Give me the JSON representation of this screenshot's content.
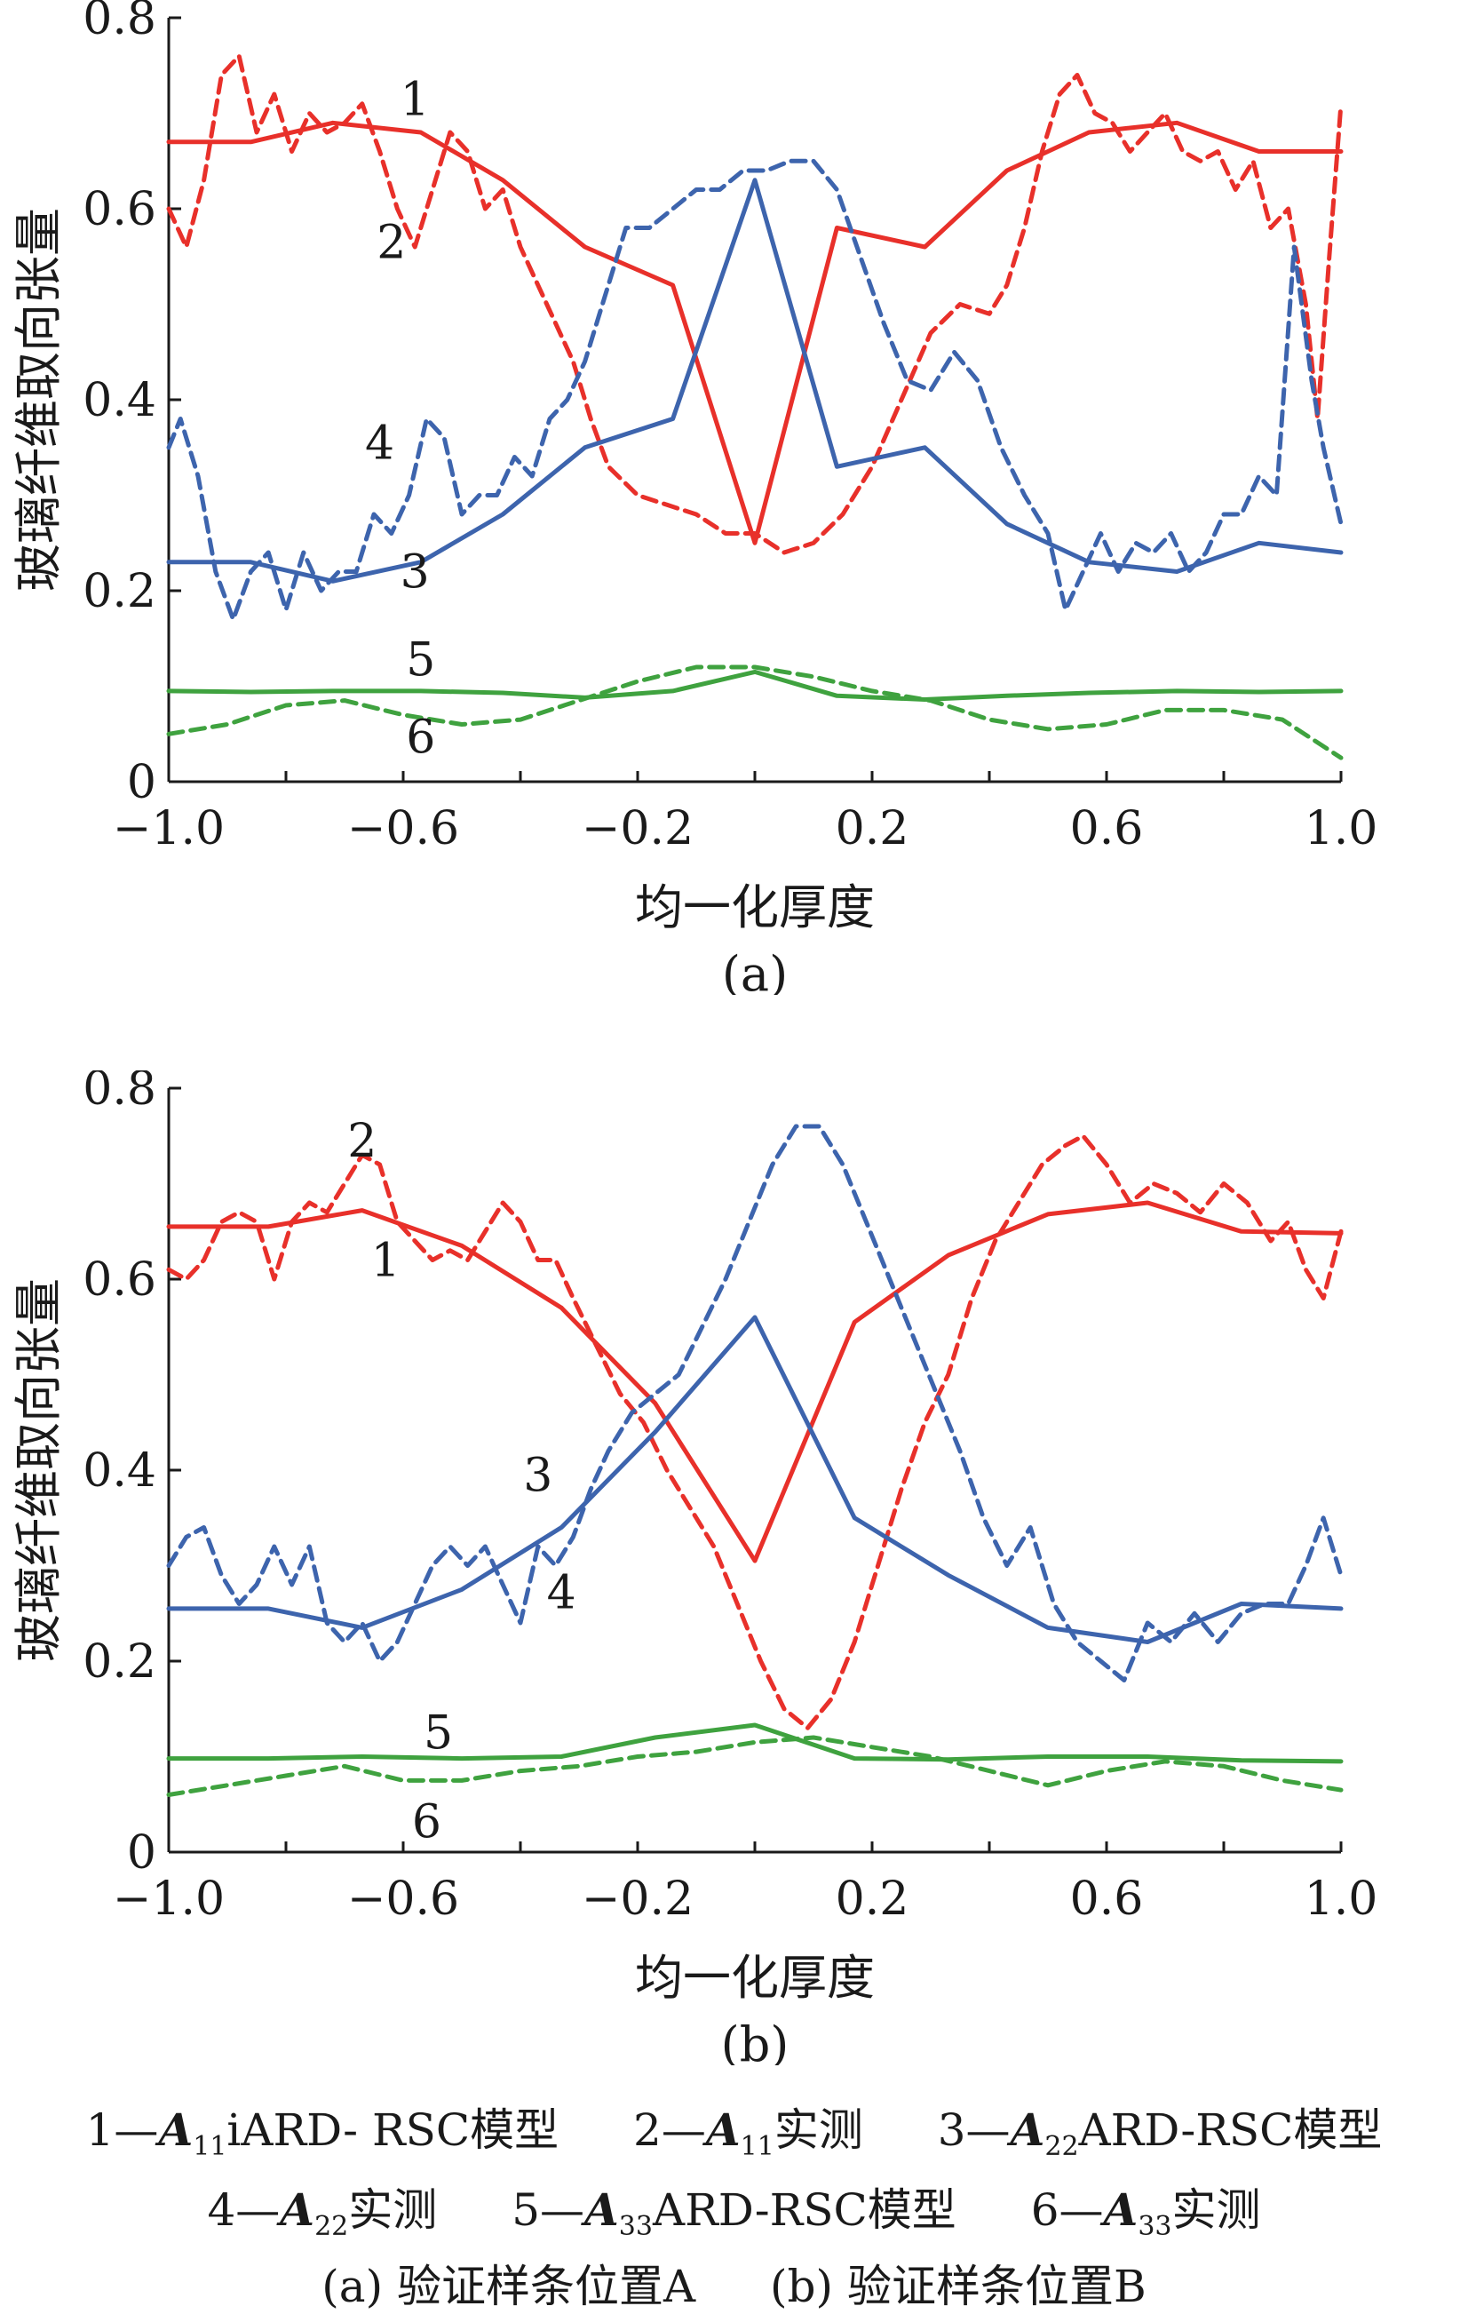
{
  "panels": [
    {
      "id": "a",
      "caption": "(a)"
    },
    {
      "id": "b",
      "caption": "(b)"
    }
  ],
  "colors": {
    "series1": "#e8302a",
    "series2": "#e8302a",
    "series3": "#3d64ad",
    "series4": "#3d64ad",
    "series5": "#3fa23f",
    "series6": "#3fa23f",
    "axis": "#1a1a1a"
  },
  "legend": {
    "row1": [
      {
        "num": "1—",
        "sym": "A",
        "sub": "11",
        "rest": "iARD- RSC模型"
      },
      {
        "num": "2—",
        "sym": "A",
        "sub": "11",
        "rest": "实测"
      },
      {
        "num": "3—",
        "sym": "A",
        "sub": "22",
        "rest": "ARD-RSC模型"
      }
    ],
    "row2": [
      {
        "num": "4—",
        "sym": "A",
        "sub": "22",
        "rest": "实测"
      },
      {
        "num": "5—",
        "sym": "A",
        "sub": "33",
        "rest": "ARD-RSC模型"
      },
      {
        "num": "6—",
        "sym": "A",
        "sub": "33",
        "rest": "实测"
      }
    ],
    "row3": [
      "(a) 验证样条位置A",
      "(b) 验证样条位置B"
    ]
  },
  "chart_data": [
    {
      "type": "line",
      "panel": "(a)",
      "xlabel": "均一化厚度",
      "ylabel": "玻璃纤维取向张量",
      "xlim": [
        -1.0,
        1.0
      ],
      "ylim": [
        0,
        0.8
      ],
      "xticks": [
        "-1.0",
        "-0.6",
        "-0.2",
        "0.2",
        "0.6",
        "1.0"
      ],
      "yticks": [
        "0",
        "0.2",
        "0.4",
        "0.6",
        "0.8"
      ],
      "series": [
        {
          "name": "1",
          "style": "solid",
          "color": "#e8302a",
          "x": [
            -1.0,
            -0.86,
            -0.72,
            -0.57,
            -0.43,
            -0.29,
            -0.14,
            0.0,
            0.14,
            0.29,
            0.43,
            0.57,
            0.72,
            0.86,
            1.0
          ],
          "y": [
            0.67,
            0.67,
            0.69,
            0.68,
            0.63,
            0.56,
            0.52,
            0.25,
            0.58,
            0.56,
            0.64,
            0.68,
            0.69,
            0.66,
            0.66
          ],
          "label_at": [
            -0.58,
            0.715
          ]
        },
        {
          "name": "2",
          "style": "dashed",
          "color": "#e8302a",
          "x": [
            -1.0,
            -0.97,
            -0.94,
            -0.91,
            -0.88,
            -0.85,
            -0.82,
            -0.79,
            -0.76,
            -0.73,
            -0.7,
            -0.67,
            -0.64,
            -0.61,
            -0.58,
            -0.55,
            -0.52,
            -0.49,
            -0.46,
            -0.43,
            -0.4,
            -0.37,
            -0.34,
            -0.31,
            -0.28,
            -0.25,
            -0.2,
            -0.15,
            -0.1,
            -0.05,
            0.0,
            0.05,
            0.1,
            0.15,
            0.2,
            0.25,
            0.3,
            0.35,
            0.4,
            0.43,
            0.46,
            0.49,
            0.52,
            0.55,
            0.58,
            0.61,
            0.64,
            0.67,
            0.7,
            0.73,
            0.76,
            0.79,
            0.82,
            0.85,
            0.88,
            0.91,
            0.94,
            0.96,
            0.98,
            1.0
          ],
          "y": [
            0.6,
            0.56,
            0.63,
            0.74,
            0.76,
            0.68,
            0.72,
            0.66,
            0.7,
            0.68,
            0.69,
            0.71,
            0.66,
            0.6,
            0.56,
            0.62,
            0.68,
            0.66,
            0.6,
            0.62,
            0.56,
            0.52,
            0.48,
            0.44,
            0.38,
            0.33,
            0.3,
            0.29,
            0.28,
            0.26,
            0.26,
            0.24,
            0.25,
            0.28,
            0.33,
            0.4,
            0.47,
            0.5,
            0.49,
            0.52,
            0.58,
            0.66,
            0.72,
            0.74,
            0.7,
            0.69,
            0.66,
            0.68,
            0.7,
            0.66,
            0.65,
            0.66,
            0.62,
            0.65,
            0.58,
            0.6,
            0.5,
            0.38,
            0.55,
            0.71
          ],
          "label_at": [
            -0.62,
            0.565
          ]
        },
        {
          "name": "3",
          "style": "solid",
          "color": "#3d64ad",
          "x": [
            -1.0,
            -0.86,
            -0.72,
            -0.57,
            -0.43,
            -0.29,
            -0.14,
            0.0,
            0.14,
            0.29,
            0.43,
            0.57,
            0.72,
            0.86,
            1.0
          ],
          "y": [
            0.23,
            0.23,
            0.21,
            0.23,
            0.28,
            0.35,
            0.38,
            0.63,
            0.33,
            0.35,
            0.27,
            0.23,
            0.22,
            0.25,
            0.24
          ],
          "label_at": [
            -0.58,
            0.22
          ]
        },
        {
          "name": "4",
          "style": "dashed",
          "color": "#3d64ad",
          "x": [
            -1.0,
            -0.98,
            -0.95,
            -0.92,
            -0.89,
            -0.86,
            -0.83,
            -0.8,
            -0.77,
            -0.74,
            -0.71,
            -0.68,
            -0.65,
            -0.62,
            -0.59,
            -0.56,
            -0.53,
            -0.5,
            -0.47,
            -0.44,
            -0.41,
            -0.38,
            -0.35,
            -0.32,
            -0.29,
            -0.26,
            -0.22,
            -0.18,
            -0.14,
            -0.1,
            -0.06,
            -0.02,
            0.02,
            0.06,
            0.1,
            0.14,
            0.18,
            0.22,
            0.26,
            0.3,
            0.34,
            0.38,
            0.42,
            0.46,
            0.5,
            0.53,
            0.56,
            0.59,
            0.62,
            0.65,
            0.68,
            0.71,
            0.74,
            0.77,
            0.8,
            0.83,
            0.86,
            0.89,
            0.92,
            0.95,
            0.97,
            1.0
          ],
          "y": [
            0.35,
            0.38,
            0.32,
            0.22,
            0.17,
            0.22,
            0.24,
            0.18,
            0.24,
            0.2,
            0.22,
            0.22,
            0.28,
            0.26,
            0.3,
            0.38,
            0.36,
            0.28,
            0.3,
            0.3,
            0.34,
            0.32,
            0.38,
            0.4,
            0.44,
            0.5,
            0.58,
            0.58,
            0.6,
            0.62,
            0.62,
            0.64,
            0.64,
            0.65,
            0.65,
            0.62,
            0.55,
            0.48,
            0.42,
            0.41,
            0.45,
            0.42,
            0.35,
            0.3,
            0.26,
            0.18,
            0.22,
            0.26,
            0.22,
            0.25,
            0.24,
            0.26,
            0.22,
            0.24,
            0.28,
            0.28,
            0.32,
            0.3,
            0.56,
            0.42,
            0.35,
            0.27
          ],
          "label_at": [
            -0.64,
            0.355
          ]
        },
        {
          "name": "5",
          "style": "solid",
          "color": "#3fa23f",
          "x": [
            -1.0,
            -0.86,
            -0.72,
            -0.57,
            -0.43,
            -0.29,
            -0.14,
            0.0,
            0.14,
            0.29,
            0.43,
            0.57,
            0.72,
            0.86,
            1.0
          ],
          "y": [
            0.095,
            0.094,
            0.095,
            0.095,
            0.093,
            0.088,
            0.095,
            0.115,
            0.09,
            0.086,
            0.09,
            0.093,
            0.095,
            0.094,
            0.095
          ],
          "label_at": [
            -0.57,
            0.128
          ]
        },
        {
          "name": "6",
          "style": "dashed",
          "color": "#3fa23f",
          "x": [
            -1.0,
            -0.9,
            -0.8,
            -0.7,
            -0.6,
            -0.5,
            -0.4,
            -0.3,
            -0.2,
            -0.1,
            0.0,
            0.1,
            0.2,
            0.3,
            0.4,
            0.5,
            0.6,
            0.7,
            0.8,
            0.9,
            1.0
          ],
          "y": [
            0.05,
            0.06,
            0.08,
            0.085,
            0.07,
            0.06,
            0.065,
            0.085,
            0.105,
            0.12,
            0.12,
            0.11,
            0.095,
            0.085,
            0.065,
            0.055,
            0.06,
            0.075,
            0.075,
            0.065,
            0.025
          ],
          "label_at": [
            -0.57,
            0.047
          ]
        }
      ]
    },
    {
      "type": "line",
      "panel": "(b)",
      "xlabel": "均一化厚度",
      "ylabel": "玻璃纤维取向张量",
      "xlim": [
        -1.0,
        1.0
      ],
      "ylim": [
        0,
        0.8
      ],
      "xticks": [
        "-1.0",
        "-0.6",
        "-0.2",
        "0.2",
        "0.6",
        "1.0"
      ],
      "yticks": [
        "0",
        "0.2",
        "0.4",
        "0.6",
        "0.8"
      ],
      "series": [
        {
          "name": "1",
          "style": "solid",
          "color": "#e8302a",
          "x": [
            -1.0,
            -0.83,
            -0.67,
            -0.5,
            -0.33,
            -0.17,
            0.0,
            0.17,
            0.33,
            0.5,
            0.67,
            0.83,
            1.0
          ],
          "y": [
            0.655,
            0.655,
            0.672,
            0.635,
            0.57,
            0.47,
            0.305,
            0.555,
            0.625,
            0.668,
            0.68,
            0.65,
            0.648
          ],
          "label_at": [
            -0.63,
            0.62
          ]
        },
        {
          "name": "2",
          "style": "dashed",
          "color": "#e8302a",
          "x": [
            -1.0,
            -0.97,
            -0.94,
            -0.91,
            -0.88,
            -0.85,
            -0.82,
            -0.79,
            -0.76,
            -0.73,
            -0.7,
            -0.67,
            -0.64,
            -0.61,
            -0.58,
            -0.55,
            -0.52,
            -0.49,
            -0.46,
            -0.43,
            -0.4,
            -0.37,
            -0.34,
            -0.31,
            -0.27,
            -0.23,
            -0.19,
            -0.15,
            -0.11,
            -0.07,
            -0.03,
            0.01,
            0.05,
            0.09,
            0.13,
            0.17,
            0.21,
            0.25,
            0.29,
            0.33,
            0.37,
            0.41,
            0.45,
            0.49,
            0.53,
            0.56,
            0.6,
            0.64,
            0.68,
            0.72,
            0.76,
            0.8,
            0.84,
            0.88,
            0.91,
            0.94,
            0.97,
            1.0
          ],
          "y": [
            0.61,
            0.6,
            0.62,
            0.66,
            0.67,
            0.66,
            0.6,
            0.66,
            0.68,
            0.67,
            0.7,
            0.73,
            0.72,
            0.66,
            0.64,
            0.62,
            0.63,
            0.62,
            0.65,
            0.68,
            0.66,
            0.62,
            0.62,
            0.58,
            0.53,
            0.48,
            0.45,
            0.4,
            0.36,
            0.32,
            0.26,
            0.2,
            0.15,
            0.13,
            0.16,
            0.22,
            0.3,
            0.38,
            0.45,
            0.5,
            0.58,
            0.64,
            0.68,
            0.72,
            0.74,
            0.75,
            0.72,
            0.68,
            0.7,
            0.69,
            0.67,
            0.7,
            0.68,
            0.64,
            0.66,
            0.61,
            0.58,
            0.65
          ],
          "label_at": [
            -0.67,
            0.745
          ]
        },
        {
          "name": "3",
          "style": "solid",
          "color": "#3d64ad",
          "x": [
            -1.0,
            -0.83,
            -0.67,
            -0.5,
            -0.33,
            -0.17,
            0.0,
            0.17,
            0.33,
            0.5,
            0.67,
            0.83,
            1.0
          ],
          "y": [
            0.255,
            0.255,
            0.235,
            0.275,
            0.34,
            0.44,
            0.56,
            0.35,
            0.29,
            0.235,
            0.22,
            0.26,
            0.255
          ],
          "label_at": [
            -0.37,
            0.395
          ]
        },
        {
          "name": "4",
          "style": "dashed",
          "color": "#3d64ad",
          "x": [
            -1.0,
            -0.97,
            -0.94,
            -0.91,
            -0.88,
            -0.85,
            -0.82,
            -0.79,
            -0.76,
            -0.73,
            -0.7,
            -0.67,
            -0.64,
            -0.61,
            -0.58,
            -0.55,
            -0.52,
            -0.49,
            -0.46,
            -0.43,
            -0.4,
            -0.37,
            -0.34,
            -0.31,
            -0.28,
            -0.25,
            -0.21,
            -0.17,
            -0.13,
            -0.09,
            -0.05,
            -0.01,
            0.03,
            0.07,
            0.11,
            0.15,
            0.19,
            0.23,
            0.27,
            0.31,
            0.35,
            0.39,
            0.43,
            0.47,
            0.51,
            0.55,
            0.59,
            0.63,
            0.67,
            0.71,
            0.75,
            0.79,
            0.83,
            0.87,
            0.91,
            0.94,
            0.97,
            1.0
          ],
          "y": [
            0.3,
            0.33,
            0.34,
            0.29,
            0.26,
            0.28,
            0.32,
            0.28,
            0.32,
            0.24,
            0.22,
            0.24,
            0.2,
            0.22,
            0.26,
            0.3,
            0.32,
            0.3,
            0.32,
            0.28,
            0.24,
            0.32,
            0.3,
            0.33,
            0.38,
            0.42,
            0.46,
            0.48,
            0.5,
            0.55,
            0.6,
            0.66,
            0.72,
            0.76,
            0.76,
            0.72,
            0.66,
            0.6,
            0.54,
            0.48,
            0.42,
            0.35,
            0.3,
            0.34,
            0.26,
            0.22,
            0.2,
            0.18,
            0.24,
            0.22,
            0.25,
            0.22,
            0.25,
            0.26,
            0.26,
            0.3,
            0.35,
            0.29
          ],
          "label_at": [
            -0.33,
            0.272
          ]
        },
        {
          "name": "5",
          "style": "solid",
          "color": "#3fa23f",
          "x": [
            -1.0,
            -0.83,
            -0.67,
            -0.5,
            -0.33,
            -0.17,
            0.0,
            0.17,
            0.33,
            0.5,
            0.67,
            0.83,
            1.0
          ],
          "y": [
            0.098,
            0.098,
            0.1,
            0.098,
            0.1,
            0.12,
            0.133,
            0.098,
            0.097,
            0.1,
            0.1,
            0.096,
            0.095
          ],
          "label_at": [
            -0.54,
            0.125
          ]
        },
        {
          "name": "6",
          "style": "dashed",
          "color": "#3fa23f",
          "x": [
            -1.0,
            -0.9,
            -0.8,
            -0.7,
            -0.6,
            -0.5,
            -0.4,
            -0.3,
            -0.2,
            -0.1,
            0.0,
            0.1,
            0.2,
            0.3,
            0.4,
            0.5,
            0.6,
            0.7,
            0.8,
            0.9,
            1.0
          ],
          "y": [
            0.06,
            0.07,
            0.08,
            0.09,
            0.075,
            0.075,
            0.085,
            0.09,
            0.1,
            0.105,
            0.115,
            0.12,
            0.11,
            0.1,
            0.085,
            0.07,
            0.085,
            0.095,
            0.09,
            0.075,
            0.065
          ],
          "label_at": [
            -0.56,
            0.032
          ]
        }
      ]
    }
  ]
}
